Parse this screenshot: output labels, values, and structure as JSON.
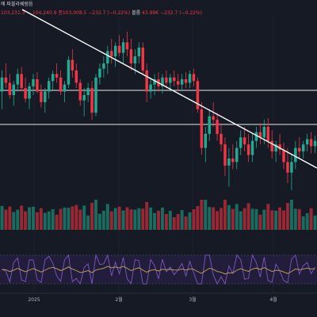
{
  "header": {
    "row1_text": "에 파블라쉐럼음",
    "ohlc_text": "103,231.3 ㆍ 104,240.9  종103,008.5 −232.7 (−0.22%)",
    "volume_label": "볼륨",
    "volume_value": "43.99K",
    "volume_change": "−232.7 (−0.22%)"
  },
  "xaxis": {
    "labels": [
      "2025",
      "2월",
      "3월",
      "4월"
    ]
  },
  "colors": {
    "background": "#161a25",
    "up": "#22ab94",
    "down": "#f23645",
    "line": "#ffffff",
    "rsi_band": "#2a2350",
    "rsi_line": "#7e57c2",
    "rsi_ma": "#c9a35a"
  },
  "chart_data": {
    "type": "candlestick",
    "x_labels": [
      "2025",
      "2월",
      "3월",
      "4월"
    ],
    "horizontal_lines": [
      {
        "label": "upper horizontal level"
      },
      {
        "label": "lower horizontal level"
      }
    ],
    "trend_line": {
      "direction": "descending"
    },
    "candles": [
      {
        "o": 50,
        "h": 62,
        "l": 40,
        "c": 58
      },
      {
        "o": 58,
        "h": 66,
        "l": 52,
        "c": 55
      },
      {
        "o": 55,
        "h": 60,
        "l": 46,
        "c": 48
      },
      {
        "o": 48,
        "h": 56,
        "l": 42,
        "c": 54
      },
      {
        "o": 54,
        "h": 63,
        "l": 50,
        "c": 60
      },
      {
        "o": 60,
        "h": 64,
        "l": 50,
        "c": 52
      },
      {
        "o": 52,
        "h": 58,
        "l": 44,
        "c": 46
      },
      {
        "o": 46,
        "h": 55,
        "l": 40,
        "c": 53
      },
      {
        "o": 53,
        "h": 60,
        "l": 48,
        "c": 57
      },
      {
        "o": 57,
        "h": 61,
        "l": 49,
        "c": 50
      },
      {
        "o": 50,
        "h": 54,
        "l": 41,
        "c": 44
      },
      {
        "o": 44,
        "h": 52,
        "l": 38,
        "c": 50
      },
      {
        "o": 50,
        "h": 58,
        "l": 46,
        "c": 56
      },
      {
        "o": 56,
        "h": 62,
        "l": 51,
        "c": 60
      },
      {
        "o": 60,
        "h": 66,
        "l": 55,
        "c": 58
      },
      {
        "o": 58,
        "h": 62,
        "l": 48,
        "c": 50
      },
      {
        "o": 50,
        "h": 56,
        "l": 44,
        "c": 54
      },
      {
        "o": 54,
        "h": 70,
        "l": 52,
        "c": 68
      },
      {
        "o": 68,
        "h": 74,
        "l": 58,
        "c": 62
      },
      {
        "o": 62,
        "h": 66,
        "l": 52,
        "c": 55
      },
      {
        "o": 55,
        "h": 57,
        "l": 42,
        "c": 45
      },
      {
        "o": 45,
        "h": 52,
        "l": 36,
        "c": 48
      },
      {
        "o": 48,
        "h": 55,
        "l": 44,
        "c": 52
      },
      {
        "o": 52,
        "h": 56,
        "l": 34,
        "c": 38
      },
      {
        "o": 38,
        "h": 60,
        "l": 36,
        "c": 58
      },
      {
        "o": 58,
        "h": 66,
        "l": 54,
        "c": 63
      },
      {
        "o": 63,
        "h": 70,
        "l": 58,
        "c": 66
      },
      {
        "o": 66,
        "h": 76,
        "l": 60,
        "c": 73
      },
      {
        "o": 73,
        "h": 80,
        "l": 66,
        "c": 70
      },
      {
        "o": 70,
        "h": 78,
        "l": 64,
        "c": 76
      },
      {
        "o": 76,
        "h": 82,
        "l": 70,
        "c": 72
      },
      {
        "o": 72,
        "h": 80,
        "l": 66,
        "c": 78
      },
      {
        "o": 78,
        "h": 84,
        "l": 70,
        "c": 74
      },
      {
        "o": 74,
        "h": 80,
        "l": 62,
        "c": 66
      },
      {
        "o": 66,
        "h": 74,
        "l": 60,
        "c": 70
      },
      {
        "o": 70,
        "h": 78,
        "l": 66,
        "c": 75
      },
      {
        "o": 75,
        "h": 78,
        "l": 60,
        "c": 62
      },
      {
        "o": 62,
        "h": 66,
        "l": 44,
        "c": 50
      },
      {
        "o": 50,
        "h": 58,
        "l": 46,
        "c": 54
      },
      {
        "o": 54,
        "h": 60,
        "l": 48,
        "c": 57
      },
      {
        "o": 57,
        "h": 61,
        "l": 50,
        "c": 53
      },
      {
        "o": 53,
        "h": 60,
        "l": 49,
        "c": 58
      },
      {
        "o": 58,
        "h": 62,
        "l": 52,
        "c": 55
      },
      {
        "o": 55,
        "h": 60,
        "l": 50,
        "c": 58
      },
      {
        "o": 58,
        "h": 62,
        "l": 53,
        "c": 56
      },
      {
        "o": 56,
        "h": 60,
        "l": 51,
        "c": 54
      },
      {
        "o": 54,
        "h": 60,
        "l": 50,
        "c": 57
      },
      {
        "o": 57,
        "h": 61,
        "l": 52,
        "c": 55
      },
      {
        "o": 55,
        "h": 62,
        "l": 52,
        "c": 60
      },
      {
        "o": 60,
        "h": 63,
        "l": 53,
        "c": 56
      },
      {
        "o": 56,
        "h": 58,
        "l": 38,
        "c": 40
      },
      {
        "o": 40,
        "h": 44,
        "l": 14,
        "c": 18
      },
      {
        "o": 18,
        "h": 30,
        "l": 10,
        "c": 26
      },
      {
        "o": 26,
        "h": 40,
        "l": 22,
        "c": 36
      },
      {
        "o": 36,
        "h": 44,
        "l": 30,
        "c": 34
      },
      {
        "o": 34,
        "h": 38,
        "l": 22,
        "c": 26
      },
      {
        "o": 26,
        "h": 32,
        "l": 16,
        "c": 20
      },
      {
        "o": 20,
        "h": 24,
        "l": 2,
        "c": 8
      },
      {
        "o": 8,
        "h": 18,
        "l": -4,
        "c": 12
      },
      {
        "o": 12,
        "h": 20,
        "l": 6,
        "c": 10
      },
      {
        "o": 10,
        "h": 22,
        "l": 6,
        "c": 18
      },
      {
        "o": 18,
        "h": 28,
        "l": 14,
        "c": 24
      },
      {
        "o": 24,
        "h": 30,
        "l": 16,
        "c": 20
      },
      {
        "o": 20,
        "h": 26,
        "l": 10,
        "c": 14
      },
      {
        "o": 14,
        "h": 26,
        "l": 10,
        "c": 22
      },
      {
        "o": 22,
        "h": 30,
        "l": 18,
        "c": 27
      },
      {
        "o": 27,
        "h": 32,
        "l": 20,
        "c": 24
      },
      {
        "o": 24,
        "h": 34,
        "l": 20,
        "c": 30
      },
      {
        "o": 30,
        "h": 35,
        "l": 18,
        "c": 22
      },
      {
        "o": 22,
        "h": 28,
        "l": 12,
        "c": 16
      },
      {
        "o": 16,
        "h": 22,
        "l": 10,
        "c": 20
      },
      {
        "o": 20,
        "h": 26,
        "l": 14,
        "c": 17
      },
      {
        "o": 17,
        "h": 21,
        "l": 6,
        "c": 10
      },
      {
        "o": 10,
        "h": 18,
        "l": -2,
        "c": 4
      },
      {
        "o": 4,
        "h": 14,
        "l": -6,
        "c": 10
      },
      {
        "o": 10,
        "h": 22,
        "l": 6,
        "c": 18
      },
      {
        "o": 18,
        "h": 24,
        "l": 12,
        "c": 16
      },
      {
        "o": 16,
        "h": 22,
        "l": 12,
        "c": 20
      },
      {
        "o": 20,
        "h": 26,
        "l": 16,
        "c": 23
      },
      {
        "o": 23,
        "h": 27,
        "l": 15,
        "c": 19
      },
      {
        "o": 19,
        "h": 25,
        "l": 15,
        "c": 22
      }
    ]
  }
}
